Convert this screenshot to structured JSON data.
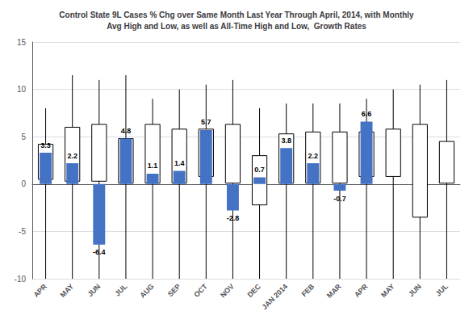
{
  "chart_data": {
    "type": "bar",
    "title": "Control State 9L Cases % Chg over Same Month Last Year Through April, 2014, with Monthly\nAvg High and Low, as well as All-Time High and Low,  Growth Rates",
    "categories": [
      "APR",
      "MAY",
      "JUN",
      "JUL",
      "AUG",
      "SEP",
      "OCT",
      "NOV",
      "DEC",
      "JAN 2014",
      "FEB",
      "MAR",
      "APR",
      "MAY",
      "JUN",
      "JUL"
    ],
    "values": [
      3.3,
      2.2,
      -6.4,
      4.8,
      1.1,
      1.4,
      5.7,
      -2.8,
      0.7,
      3.8,
      2.2,
      -0.7,
      6.6,
      null,
      null,
      null
    ],
    "box_low": [
      0.5,
      0.3,
      0.3,
      0.1,
      0.1,
      0.1,
      0.8,
      0.1,
      -2.2,
      0.1,
      0.1,
      0.1,
      0.8,
      0.8,
      -3.5,
      0.1
    ],
    "box_high": [
      4.2,
      6.0,
      6.3,
      4.8,
      6.3,
      5.8,
      5.8,
      6.3,
      3.0,
      5.3,
      5.5,
      5.5,
      5.5,
      5.8,
      6.3,
      4.5
    ],
    "whisker_low": [
      -10,
      -10,
      -10,
      -10,
      -10,
      -10,
      -10,
      -10,
      -10,
      -10,
      -10,
      -10,
      -10,
      -10,
      -10,
      -10
    ],
    "whisker_high": [
      8.0,
      11.5,
      11.0,
      11.5,
      9.0,
      10.0,
      10.5,
      11.0,
      8.0,
      8.5,
      8.5,
      8.5,
      9.0,
      10.0,
      10.5,
      11.0
    ],
    "color": "#4472C4",
    "ylim": [
      -10,
      15
    ],
    "yticks": [
      -10,
      -5,
      0,
      5,
      10,
      15
    ],
    "grid": true,
    "data_labels": true
  }
}
